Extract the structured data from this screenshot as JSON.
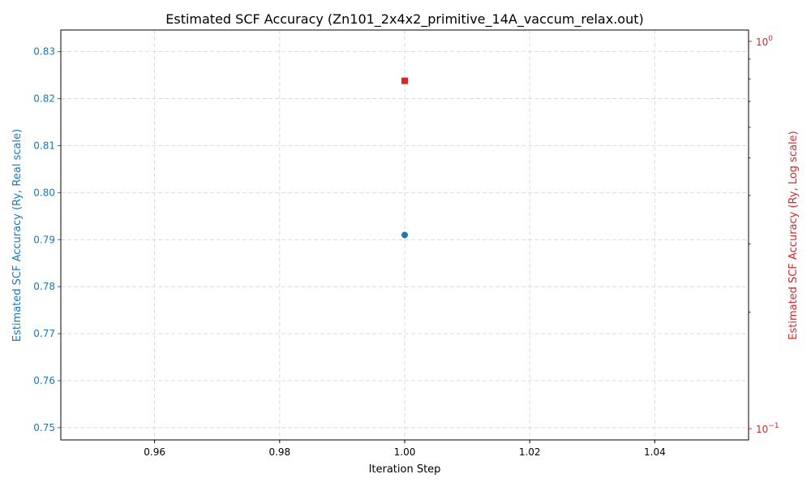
{
  "chart_data": {
    "type": "scatter",
    "title": "Estimated SCF Accuracy (Zn101_2x4x2_primitive_14A_vaccum_relax.out)",
    "xlabel": "Iteration Step",
    "ylabel_left": "Estimated SCF Accuracy (Ry, Real scale)",
    "ylabel_right": "Estimated SCF Accuracy (Ry, Log scale)",
    "grid": true,
    "xlim": [
      0.945,
      1.055
    ],
    "xticks": [
      0.96,
      0.98,
      1.0,
      1.02,
      1.04
    ],
    "xtick_labels": [
      "0.96",
      "0.98",
      "1.00",
      "1.02",
      "1.04"
    ],
    "ylim_left": [
      0.7474,
      0.8346
    ],
    "yticks_left": [
      0.75,
      0.76,
      0.77,
      0.78,
      0.79,
      0.8,
      0.81,
      0.82,
      0.83
    ],
    "ytick_labels_left": [
      "0.75",
      "0.76",
      "0.77",
      "0.78",
      "0.79",
      "0.80",
      "0.81",
      "0.82",
      "0.83"
    ],
    "ylim_right": [
      0.0935,
      1.07
    ],
    "right_scale": "log",
    "right_major_ticks": [
      {
        "value": 0.1,
        "base": "10",
        "exp": "−1"
      },
      {
        "value": 1,
        "base": "10",
        "exp": "0"
      }
    ],
    "series": [
      {
        "x": [
          1
        ],
        "y": [
          0.791
        ],
        "axis": "left",
        "marker": "circle",
        "color": "#1f77b4"
      },
      {
        "x": [
          1
        ],
        "y": [
          0.791
        ],
        "axis": "right",
        "marker": "square",
        "color": "#d62728"
      }
    ],
    "colors": {
      "left_axis": "#1f77b4",
      "right_axis": "#d62728",
      "grid": "#d3d3d3",
      "text": "#000000"
    }
  }
}
